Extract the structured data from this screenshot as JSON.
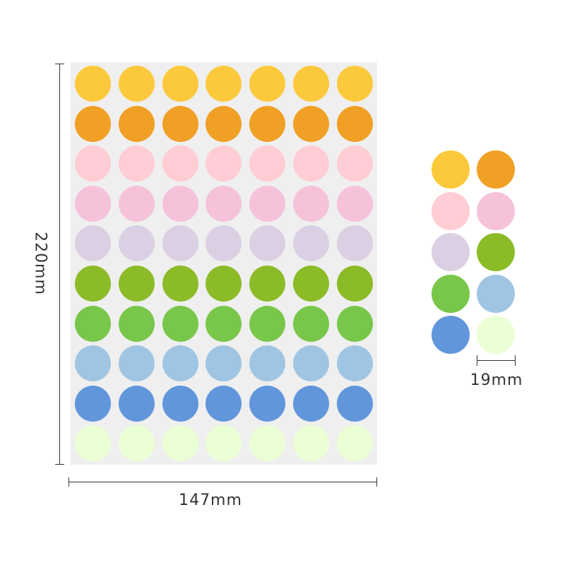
{
  "dimensions": {
    "height_label": "220mm",
    "width_label": "147mm",
    "diameter_label": "19mm"
  },
  "colors": {
    "yellow": "#fdc93c",
    "orange": "#f0a024",
    "light_pink": "#ffcdd3",
    "pink": "#f5c2da",
    "lavender": "#dbd0e3",
    "olive_green": "#8cbb28",
    "green": "#79c74a",
    "light_blue": "#a0c5e3",
    "blue": "#6196db",
    "pale_green": "#eaffd4"
  },
  "sheet": {
    "rows": [
      "yellow",
      "orange",
      "light_pink",
      "pink",
      "lavender",
      "olive_green",
      "green",
      "light_blue",
      "blue",
      "pale_green"
    ],
    "columns": 7
  },
  "swatches": [
    "yellow",
    "orange",
    "light_pink",
    "pink",
    "lavender",
    "olive_green",
    "green",
    "light_blue",
    "blue",
    "pale_green"
  ]
}
